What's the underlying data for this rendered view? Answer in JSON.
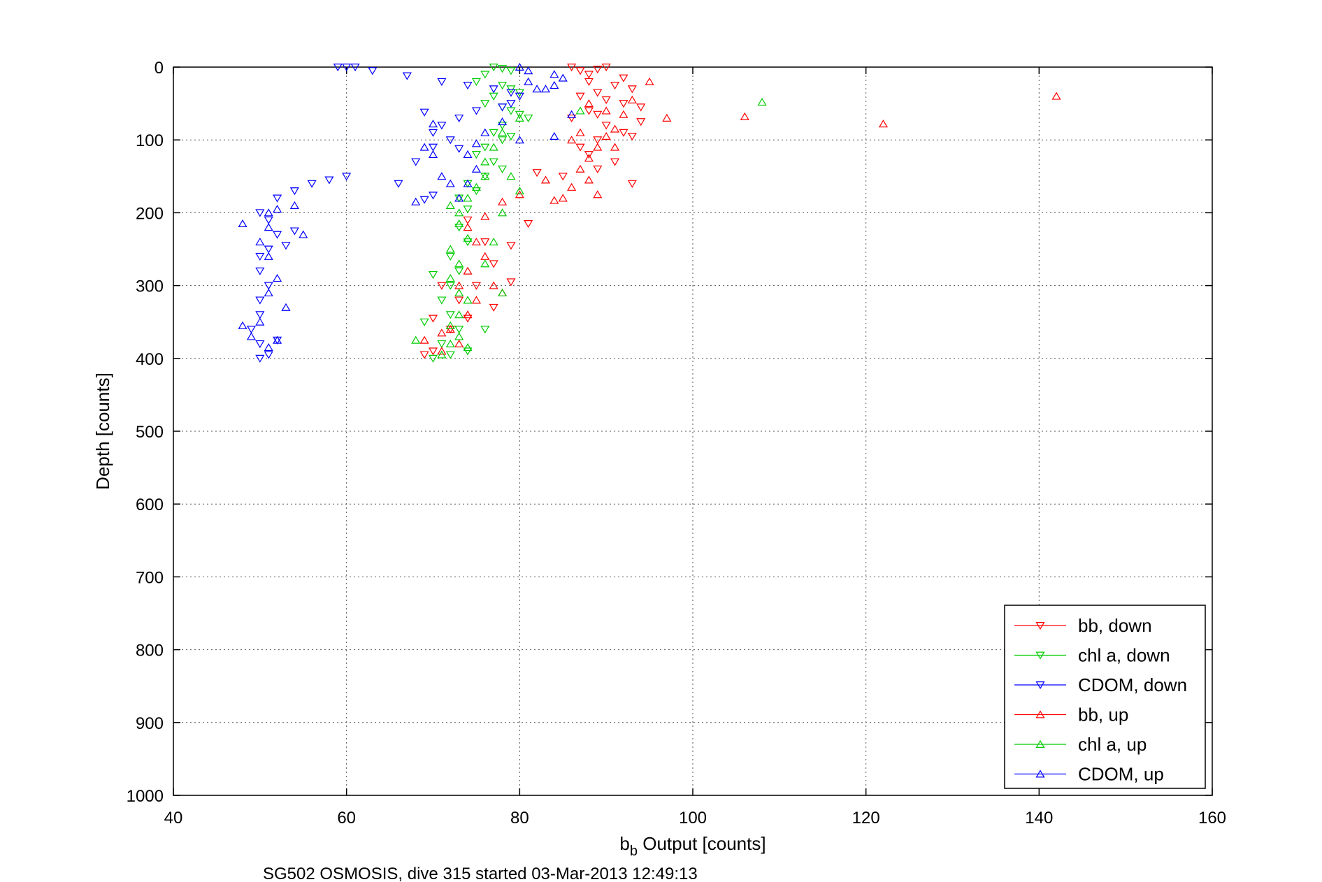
{
  "chart_data": {
    "type": "scatter",
    "xlabel_main": "b",
    "xlabel_sub": "b",
    "xlabel_rest": " Output [counts]",
    "ylabel": "Depth [counts]",
    "caption": "SG502 OSMOSIS, dive 315 started 03-Mar-2013 12:49:13",
    "xlim": [
      40,
      160
    ],
    "ylim": [
      0,
      1000
    ],
    "y_reversed": true,
    "grid": true,
    "xticks": [
      "40",
      "60",
      "80",
      "100",
      "120",
      "140",
      "160"
    ],
    "yticks": [
      "0",
      "100",
      "200",
      "300",
      "400",
      "500",
      "600",
      "700",
      "800",
      "900",
      "1000"
    ],
    "legend_position": "bottom-right",
    "series": [
      {
        "name": "bb, down",
        "color": "#ff0000",
        "marker": "triangle-down",
        "points": [
          [
            86,
            0
          ],
          [
            87,
            5
          ],
          [
            88,
            10
          ],
          [
            89,
            3
          ],
          [
            90,
            0
          ],
          [
            88,
            20
          ],
          [
            91,
            25
          ],
          [
            92,
            15
          ],
          [
            93,
            30
          ],
          [
            89,
            35
          ],
          [
            87,
            40
          ],
          [
            90,
            45
          ],
          [
            92,
            50
          ],
          [
            94,
            55
          ],
          [
            88,
            60
          ],
          [
            86,
            70
          ],
          [
            90,
            80
          ],
          [
            92,
            90
          ],
          [
            89,
            100
          ],
          [
            87,
            110
          ],
          [
            88,
            120
          ],
          [
            91,
            130
          ],
          [
            89,
            140
          ],
          [
            85,
            150
          ],
          [
            93,
            160
          ],
          [
            82,
            145
          ],
          [
            81,
            215
          ],
          [
            79,
            245
          ],
          [
            77,
            270
          ],
          [
            79,
            295
          ],
          [
            75,
            300
          ],
          [
            77,
            330
          ],
          [
            74,
            345
          ],
          [
            72,
            360
          ],
          [
            70,
            345
          ],
          [
            69,
            395
          ],
          [
            70,
            390
          ],
          [
            74,
            210
          ],
          [
            76,
            240
          ],
          [
            73,
            320
          ],
          [
            71,
            300
          ],
          [
            89,
            65
          ],
          [
            93,
            95
          ],
          [
            94,
            75
          ]
        ]
      },
      {
        "name": "chl a, down",
        "color": "#00cc00",
        "marker": "triangle-down",
        "points": [
          [
            77,
            0
          ],
          [
            78,
            2
          ],
          [
            79,
            5
          ],
          [
            76,
            10
          ],
          [
            75,
            20
          ],
          [
            78,
            25
          ],
          [
            79,
            30
          ],
          [
            80,
            35
          ],
          [
            77,
            40
          ],
          [
            76,
            50
          ],
          [
            78,
            55
          ],
          [
            79,
            60
          ],
          [
            80,
            65
          ],
          [
            81,
            70
          ],
          [
            78,
            80
          ],
          [
            77,
            90
          ],
          [
            79,
            95
          ],
          [
            78,
            100
          ],
          [
            76,
            110
          ],
          [
            75,
            120
          ],
          [
            77,
            130
          ],
          [
            78,
            140
          ],
          [
            76,
            150
          ],
          [
            74,
            160
          ],
          [
            75,
            170
          ],
          [
            73,
            180
          ],
          [
            74,
            195
          ],
          [
            73,
            220
          ],
          [
            74,
            240
          ],
          [
            72,
            260
          ],
          [
            73,
            280
          ],
          [
            72,
            300
          ],
          [
            71,
            320
          ],
          [
            72,
            340
          ],
          [
            73,
            360
          ],
          [
            71,
            380
          ],
          [
            70,
            400
          ],
          [
            72,
            395
          ],
          [
            76,
            360
          ],
          [
            74,
            390
          ],
          [
            69,
            350
          ],
          [
            70,
            285
          ]
        ]
      },
      {
        "name": "CDOM, down",
        "color": "#0000ff",
        "marker": "triangle-down",
        "points": [
          [
            59,
            0
          ],
          [
            60,
            0
          ],
          [
            61,
            0
          ],
          [
            63,
            5
          ],
          [
            67,
            12
          ],
          [
            71,
            20
          ],
          [
            74,
            25
          ],
          [
            77,
            30
          ],
          [
            79,
            35
          ],
          [
            80,
            40
          ],
          [
            79,
            50
          ],
          [
            78,
            55
          ],
          [
            75,
            60
          ],
          [
            73,
            70
          ],
          [
            71,
            80
          ],
          [
            70,
            90
          ],
          [
            72,
            100
          ],
          [
            70,
            110
          ],
          [
            68,
            130
          ],
          [
            66,
            160
          ],
          [
            60,
            150
          ],
          [
            58,
            155
          ],
          [
            56,
            160
          ],
          [
            54,
            170
          ],
          [
            52,
            180
          ],
          [
            50,
            200
          ],
          [
            51,
            210
          ],
          [
            52,
            230
          ],
          [
            51,
            250
          ],
          [
            50,
            260
          ],
          [
            50,
            280
          ],
          [
            51,
            300
          ],
          [
            50,
            320
          ],
          [
            50,
            340
          ],
          [
            49,
            360
          ],
          [
            50,
            380
          ],
          [
            50,
            400
          ],
          [
            51,
            395
          ],
          [
            52,
            375
          ],
          [
            53,
            245
          ],
          [
            54,
            225
          ],
          [
            69,
            182
          ],
          [
            70,
            176
          ],
          [
            73,
            112
          ],
          [
            69,
            62
          ]
        ]
      },
      {
        "name": "bb, up",
        "color": "#ff0000",
        "marker": "triangle-up",
        "points": [
          [
            142,
            40
          ],
          [
            122,
            78
          ],
          [
            106,
            68
          ],
          [
            97,
            70
          ],
          [
            95,
            20
          ],
          [
            93,
            45
          ],
          [
            92,
            65
          ],
          [
            91,
            85
          ],
          [
            90,
            95
          ],
          [
            89,
            110
          ],
          [
            88,
            125
          ],
          [
            87,
            140
          ],
          [
            88,
            155
          ],
          [
            89,
            175
          ],
          [
            86,
            165
          ],
          [
            85,
            180
          ],
          [
            84,
            183
          ],
          [
            83,
            155
          ],
          [
            80,
            175
          ],
          [
            78,
            185
          ],
          [
            76,
            205
          ],
          [
            74,
            220
          ],
          [
            75,
            240
          ],
          [
            76,
            260
          ],
          [
            74,
            280
          ],
          [
            73,
            300
          ],
          [
            75,
            320
          ],
          [
            74,
            340
          ],
          [
            72,
            360
          ],
          [
            73,
            380
          ],
          [
            71,
            365
          ],
          [
            69,
            375
          ],
          [
            71,
            390
          ],
          [
            77,
            300
          ],
          [
            78,
            310
          ],
          [
            91,
            110
          ],
          [
            90,
            60
          ],
          [
            88,
            50
          ],
          [
            87,
            90
          ],
          [
            86,
            100
          ]
        ]
      },
      {
        "name": "chl a, up",
        "color": "#00cc00",
        "marker": "triangle-up",
        "points": [
          [
            108,
            48
          ],
          [
            87,
            60
          ],
          [
            80,
            70
          ],
          [
            78,
            90
          ],
          [
            77,
            110
          ],
          [
            76,
            130
          ],
          [
            76,
            150
          ],
          [
            75,
            165
          ],
          [
            74,
            180
          ],
          [
            73,
            200
          ],
          [
            72,
            190
          ],
          [
            73,
            215
          ],
          [
            74,
            235
          ],
          [
            72,
            250
          ],
          [
            73,
            270
          ],
          [
            72,
            290
          ],
          [
            73,
            310
          ],
          [
            74,
            320
          ],
          [
            73,
            340
          ],
          [
            72,
            355
          ],
          [
            73,
            370
          ],
          [
            72,
            380
          ],
          [
            74,
            385
          ],
          [
            71,
            395
          ],
          [
            68,
            375
          ],
          [
            78,
            310
          ],
          [
            76,
            270
          ],
          [
            77,
            240
          ],
          [
            79,
            150
          ],
          [
            80,
            170
          ],
          [
            78,
            200
          ]
        ]
      },
      {
        "name": "CDOM, up",
        "color": "#0000ff",
        "marker": "triangle-up",
        "points": [
          [
            80,
            0
          ],
          [
            81,
            20
          ],
          [
            82,
            30
          ],
          [
            84,
            25
          ],
          [
            85,
            15
          ],
          [
            84,
            10
          ],
          [
            83,
            30
          ],
          [
            81,
            5
          ],
          [
            86,
            65
          ],
          [
            84,
            95
          ],
          [
            80,
            100
          ],
          [
            78,
            75
          ],
          [
            76,
            90
          ],
          [
            75,
            105
          ],
          [
            74,
            120
          ],
          [
            75,
            140
          ],
          [
            74,
            160
          ],
          [
            73,
            180
          ],
          [
            72,
            160
          ],
          [
            71,
            150
          ],
          [
            70,
            120
          ],
          [
            69,
            110
          ],
          [
            68,
            185
          ],
          [
            48,
            215
          ],
          [
            50,
            240
          ],
          [
            51,
            260
          ],
          [
            52,
            290
          ],
          [
            51,
            310
          ],
          [
            53,
            330
          ],
          [
            50,
            350
          ],
          [
            48,
            355
          ],
          [
            49,
            370
          ],
          [
            51,
            385
          ],
          [
            52,
            375
          ],
          [
            51,
            220
          ],
          [
            51,
            200
          ],
          [
            52,
            195
          ],
          [
            54,
            190
          ],
          [
            55,
            230
          ],
          [
            70,
            78
          ]
        ]
      }
    ]
  }
}
